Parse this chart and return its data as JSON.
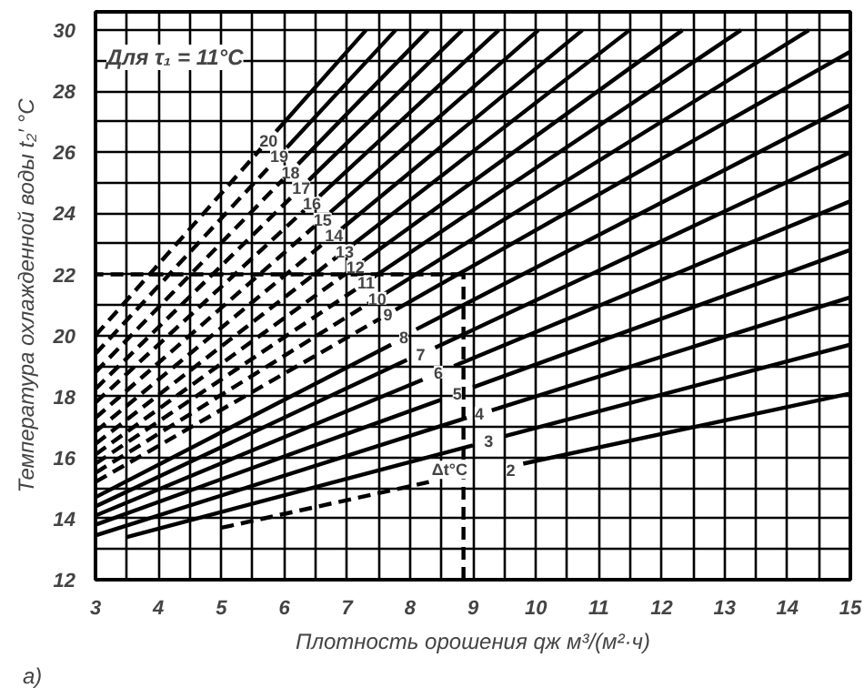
{
  "chart_data": {
    "type": "line",
    "xlabel": "Плотность орошения qж м³/(м²·ч)",
    "ylabel": "Температура охлажденной воды t₂′ °C",
    "xlim": [
      3,
      15
    ],
    "ylim": [
      12,
      30.6
    ],
    "xticks": [
      3,
      {
        "value": 3.5,
        "label": null
      },
      4,
      {
        "value": 4.5,
        "label": null
      },
      5,
      {
        "value": 5.5,
        "label": null
      },
      6,
      {
        "value": 6.5,
        "label": null
      },
      7,
      {
        "value": 7.5,
        "label": null
      },
      8,
      {
        "value": 8.5,
        "label": null
      },
      9,
      {
        "value": 9.5,
        "label": null
      },
      10,
      {
        "value": 10.5,
        "label": null
      },
      11,
      {
        "value": 11.5,
        "label": null
      },
      12,
      {
        "value": 12.5,
        "label": null
      },
      13,
      {
        "value": 13.5,
        "label": null
      },
      14,
      {
        "value": 14.5,
        "label": null
      },
      15
    ],
    "yticks": [
      12,
      {
        "value": 13,
        "label": null
      },
      14,
      {
        "value": 15,
        "label": null
      },
      16,
      {
        "value": 17,
        "label": null
      },
      18,
      {
        "value": 19,
        "label": null
      },
      20,
      {
        "value": 21,
        "label": null
      },
      22,
      {
        "value": 23,
        "label": null
      },
      24,
      {
        "value": 25,
        "label": null
      },
      26,
      {
        "value": 27,
        "label": null
      },
      28,
      {
        "value": 29,
        "label": null
      },
      30
    ],
    "grid": true,
    "marker": "none",
    "series": [
      {
        "color": "#000000",
        "line_style": "dashed",
        "x": [
          5,
          8.3
        ],
        "values": [
          13.7,
          15.2
        ]
      },
      {
        "color": "#000000",
        "line_style": "solid",
        "x": [
          9.8,
          15
        ],
        "values": [
          15.8,
          18.1
        ]
      },
      {
        "color": "#000000",
        "line_style": "solid",
        "x": [
          3.5,
          9.0
        ],
        "values": [
          13.4,
          16.4
        ]
      },
      {
        "color": "#000000",
        "line_style": "solid",
        "x": [
          9.5,
          15
        ],
        "values": [
          16.7,
          19.7
        ]
      },
      {
        "color": "#000000",
        "line_style": "solid",
        "x": [
          3,
          8.9
        ],
        "values": [
          13.45,
          17.3
        ]
      },
      {
        "color": "#000000",
        "line_style": "solid",
        "x": [
          9.3,
          15
        ],
        "values": [
          17.55,
          21.25
        ]
      },
      {
        "color": "#000000",
        "line_style": "solid",
        "x": [
          3,
          8.5
        ],
        "values": [
          13.8,
          17.9
        ]
      },
      {
        "color": "#000000",
        "line_style": "solid",
        "x": [
          9.0,
          15
        ],
        "values": [
          18.3,
          22.8
        ]
      },
      {
        "color": "#000000",
        "line_style": "solid",
        "x": [
          3,
          8.2
        ],
        "values": [
          14.1,
          18.55
        ]
      },
      {
        "color": "#000000",
        "line_style": "solid",
        "x": [
          8.7,
          15
        ],
        "values": [
          19.0,
          24.4
        ]
      },
      {
        "color": "#000000",
        "line_style": "solid",
        "x": [
          3,
          7.95
        ],
        "values": [
          14.4,
          19.2
        ]
      },
      {
        "color": "#000000",
        "line_style": "solid",
        "x": [
          8.4,
          15
        ],
        "values": [
          19.6,
          26.0
        ]
      },
      {
        "color": "#000000",
        "line_style": "solid",
        "x": [
          3,
          7.7
        ],
        "values": [
          14.7,
          19.7
        ]
      },
      {
        "color": "#000000",
        "line_style": "solid",
        "x": [
          8.1,
          15
        ],
        "values": [
          20.2,
          27.55
        ]
      },
      {
        "color": "#000000",
        "line_style": "dashed",
        "x": [
          3,
          7.53
        ],
        "values": [
          15.2,
          20.56
        ]
      },
      {
        "color": "#000000",
        "line_style": "solid",
        "x": [
          7.77,
          15
        ],
        "values": [
          20.84,
          29.3
        ]
      },
      {
        "color": "#000000",
        "line_style": "dashed",
        "x": [
          3,
          7.36
        ],
        "values": [
          15.5,
          21.07
        ]
      },
      {
        "color": "#000000",
        "line_style": "solid",
        "x": [
          7.6,
          14.34
        ],
        "values": [
          21.37,
          30
        ]
      },
      {
        "color": "#000000",
        "line_style": "dashed",
        "x": [
          3,
          7.18
        ],
        "values": [
          15.8,
          21.57
        ]
      },
      {
        "color": "#000000",
        "line_style": "solid",
        "x": [
          7.42,
          13.26
        ],
        "values": [
          21.91,
          30
        ]
      },
      {
        "color": "#000000",
        "line_style": "dashed",
        "x": [
          3,
          7.01
        ],
        "values": [
          16.1,
          22.07
        ]
      },
      {
        "color": "#000000",
        "line_style": "solid",
        "x": [
          7.25,
          12.33
        ],
        "values": [
          22.43,
          30
        ]
      },
      {
        "color": "#000000",
        "line_style": "dashed",
        "x": [
          3,
          6.84
        ],
        "values": [
          16.45,
          22.58
        ]
      },
      {
        "color": "#000000",
        "line_style": "solid",
        "x": [
          7.08,
          11.49
        ],
        "values": [
          22.96,
          30
        ]
      },
      {
        "color": "#000000",
        "line_style": "dashed",
        "x": [
          3,
          6.67
        ],
        "values": [
          16.85,
          23.09
        ]
      },
      {
        "color": "#000000",
        "line_style": "solid",
        "x": [
          6.91,
          10.74
        ],
        "values": [
          23.49,
          30
        ]
      },
      {
        "color": "#000000",
        "line_style": "dashed",
        "x": [
          3,
          6.49
        ],
        "values": [
          17.3,
          23.59
        ]
      },
      {
        "color": "#000000",
        "line_style": "solid",
        "x": [
          6.73,
          10.04
        ],
        "values": [
          24.03,
          30
        ]
      },
      {
        "color": "#000000",
        "line_style": "dashed",
        "x": [
          3,
          6.32
        ],
        "values": [
          17.8,
          24.1
        ]
      },
      {
        "color": "#000000",
        "line_style": "solid",
        "x": [
          6.56,
          9.41
        ],
        "values": [
          24.56,
          30
        ]
      },
      {
        "color": "#000000",
        "line_style": "dashed",
        "x": [
          3,
          6.15
        ],
        "values": [
          18.25,
          24.6
        ]
      },
      {
        "color": "#000000",
        "line_style": "solid",
        "x": [
          6.39,
          8.83
        ],
        "values": [
          25.08,
          30
        ]
      },
      {
        "color": "#000000",
        "line_style": "dashed",
        "x": [
          3,
          5.98
        ],
        "values": [
          18.8,
          25.11
        ]
      },
      {
        "color": "#000000",
        "line_style": "solid",
        "x": [
          6.22,
          8.29
        ],
        "values": [
          25.61,
          30
        ]
      },
      {
        "color": "#000000",
        "line_style": "dashed",
        "x": [
          3,
          5.8
        ],
        "values": [
          19.4,
          25.61
        ]
      },
      {
        "color": "#000000",
        "line_style": "solid",
        "x": [
          6.04,
          7.77
        ],
        "values": [
          26.15,
          30
        ]
      },
      {
        "color": "#000000",
        "line_style": "dashed",
        "x": [
          3,
          5.63
        ],
        "values": [
          20.0,
          26.12
        ]
      },
      {
        "color": "#000000",
        "line_style": "solid",
        "x": [
          5.87,
          7.3
        ],
        "values": [
          26.68,
          30
        ]
      },
      {
        "color": "#000000",
        "line_style": "dashed",
        "x": [
          8.85,
          8.85
        ],
        "values": [
          12,
          22
        ]
      },
      {
        "color": "#000000",
        "line_style": "dashed",
        "x": [
          8.85,
          3
        ],
        "values": [
          22,
          22
        ]
      }
    ],
    "annotations": [
      "Для τ₁ = 11°C",
      "а)",
      {
        "text": "Δt°C",
        "x": 8.63,
        "y": 15.6
      },
      {
        "text": "2",
        "x": 9.6,
        "y": 15.6
      },
      {
        "text": "3",
        "x": 9.25,
        "y": 16.55
      },
      {
        "text": "4",
        "x": 9.1,
        "y": 17.45
      },
      {
        "text": "5",
        "x": 8.75,
        "y": 18.1
      },
      {
        "text": "6",
        "x": 8.45,
        "y": 18.8
      },
      {
        "text": "7",
        "x": 8.17,
        "y": 19.4
      },
      {
        "text": "8",
        "x": 7.9,
        "y": 19.95
      },
      {
        "text": "9",
        "x": 7.65,
        "y": 20.7
      },
      {
        "text": "10",
        "x": 7.48,
        "y": 21.22
      },
      {
        "text": "11",
        "x": 7.3,
        "y": 21.74
      },
      {
        "text": "12",
        "x": 7.13,
        "y": 22.25
      },
      {
        "text": "13",
        "x": 6.96,
        "y": 22.77
      },
      {
        "text": "14",
        "x": 6.79,
        "y": 23.29
      },
      {
        "text": "15",
        "x": 6.61,
        "y": 23.81
      },
      {
        "text": "16",
        "x": 6.44,
        "y": 24.33
      },
      {
        "text": "17",
        "x": 6.27,
        "y": 24.84
      },
      {
        "text": "18",
        "x": 6.1,
        "y": 25.36
      },
      {
        "text": "19",
        "x": 5.92,
        "y": 25.88
      },
      {
        "text": "20",
        "x": 5.75,
        "y": 26.4
      }
    ]
  }
}
